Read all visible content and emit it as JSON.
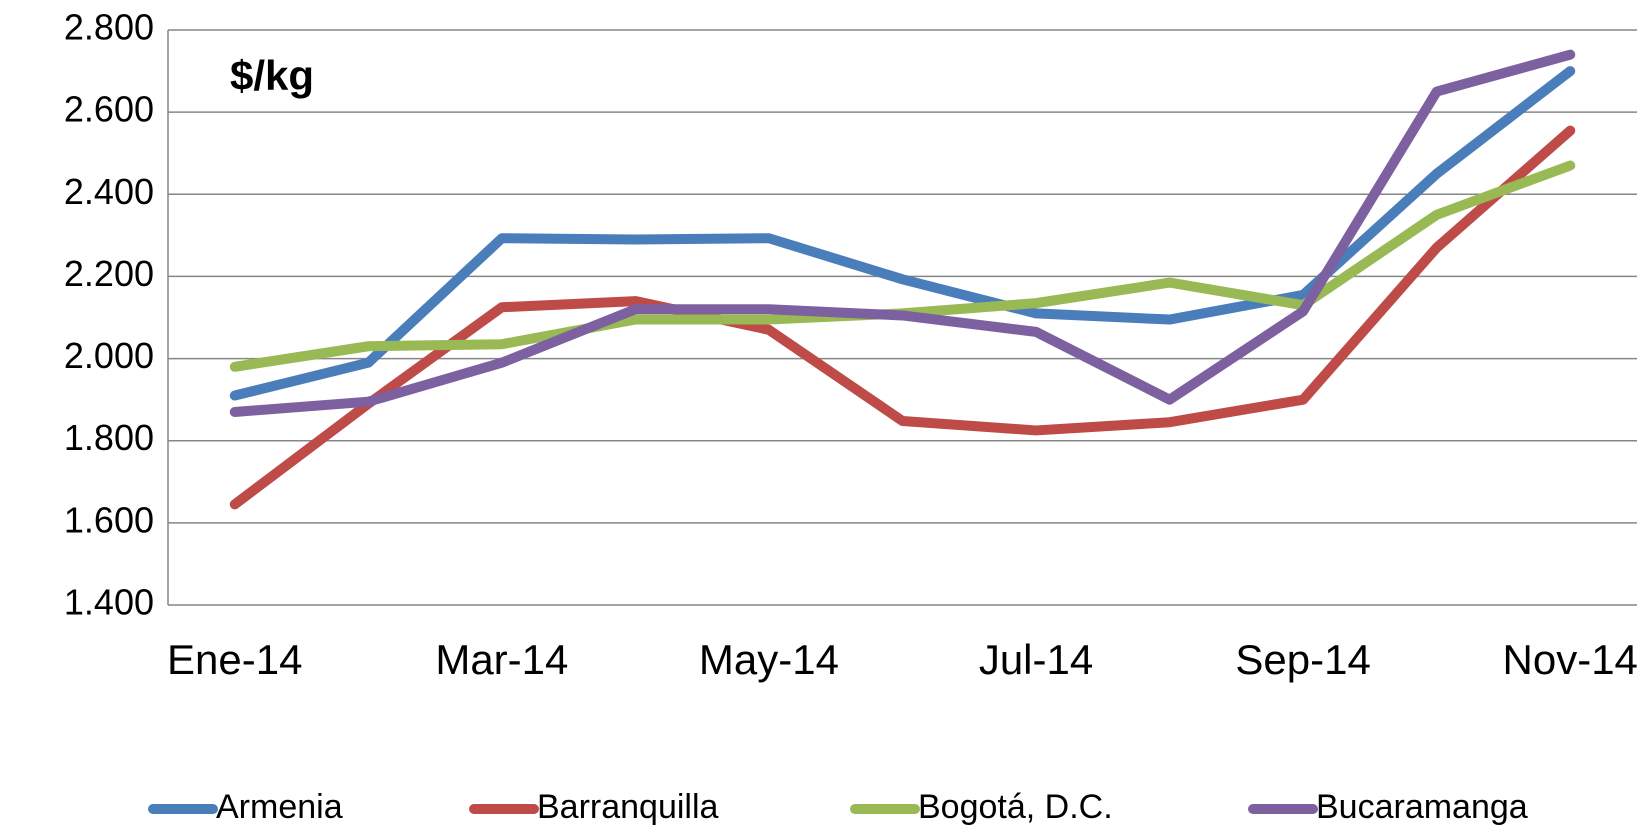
{
  "chart_data": {
    "type": "line",
    "title": "$/kg",
    "categories": [
      "Ene-14",
      null,
      "Mar-14",
      null,
      "May-14",
      null,
      "Jul-14",
      null,
      "Sep-14",
      null,
      "Nov-14"
    ],
    "series": [
      {
        "name": "Armenia",
        "color": "#4a7ebb",
        "values": [
          1910,
          1990,
          2293,
          2290,
          2293,
          2193,
          2110,
          2095,
          2155,
          2450,
          2700
        ]
      },
      {
        "name": "Barranquilla",
        "color": "#be4b48",
        "values": [
          1645,
          1890,
          2125,
          2140,
          2070,
          1848,
          1825,
          1845,
          1900,
          2270,
          2555
        ]
      },
      {
        "name": "Bogotá, D.C.",
        "color": "#98b954",
        "values": [
          1980,
          2030,
          2035,
          2095,
          2095,
          2110,
          2135,
          2185,
          2130,
          2350,
          2470
        ]
      },
      {
        "name": "Bucaramanga",
        "color": "#7d60a0",
        "values": [
          1870,
          1895,
          1990,
          2120,
          2120,
          2105,
          2065,
          1900,
          2115,
          2650,
          2740
        ]
      }
    ],
    "ylim": [
      1400,
      2800
    ],
    "yticks": [
      {
        "value": 1400,
        "label": "1.400"
      },
      {
        "value": 1600,
        "label": "1.600"
      },
      {
        "value": 1800,
        "label": "1.800"
      },
      {
        "value": 2000,
        "label": "2.000"
      },
      {
        "value": 2200,
        "label": "2.200"
      },
      {
        "value": 2400,
        "label": "2.400"
      },
      {
        "value": 2600,
        "label": "2.600"
      },
      {
        "value": 2800,
        "label": "2.800"
      }
    ],
    "grid": true,
    "legend": "bottom"
  }
}
